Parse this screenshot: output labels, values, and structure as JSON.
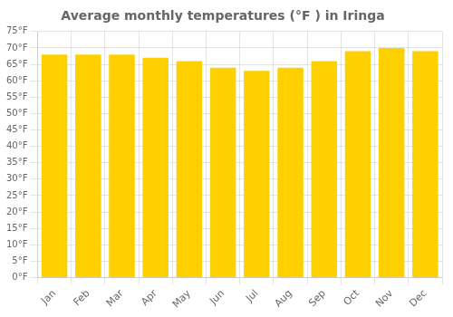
{
  "chart_data": {
    "type": "bar",
    "title": "Average monthly temperatures (°F ) in Iringa",
    "categories": [
      "Jan",
      "Feb",
      "Mar",
      "Apr",
      "May",
      "Jun",
      "Jul",
      "Aug",
      "Sep",
      "Oct",
      "Nov",
      "Dec"
    ],
    "values": [
      68,
      68,
      68,
      67,
      66,
      64,
      63,
      64,
      66,
      69,
      70,
      69
    ],
    "color": "#FFD000",
    "ylim": [
      0,
      75
    ],
    "yticks": [
      {
        "value": 0,
        "label": "0°F"
      },
      {
        "value": 5,
        "label": "5°F"
      },
      {
        "value": 10,
        "label": "10°F"
      },
      {
        "value": 15,
        "label": "15°F"
      },
      {
        "value": 20,
        "label": "20°F"
      },
      {
        "value": 25,
        "label": "25°F"
      },
      {
        "value": 30,
        "label": "30°F"
      },
      {
        "value": 35,
        "label": "35°F"
      },
      {
        "value": 40,
        "label": "40°F"
      },
      {
        "value": 45,
        "label": "45°F"
      },
      {
        "value": 50,
        "label": "50°F"
      },
      {
        "value": 55,
        "label": "55°F"
      },
      {
        "value": 60,
        "label": "60°F"
      },
      {
        "value": 65,
        "label": "65°F"
      },
      {
        "value": 70,
        "label": "70°F"
      },
      {
        "value": 75,
        "label": "75°F"
      }
    ],
    "grid": true
  }
}
